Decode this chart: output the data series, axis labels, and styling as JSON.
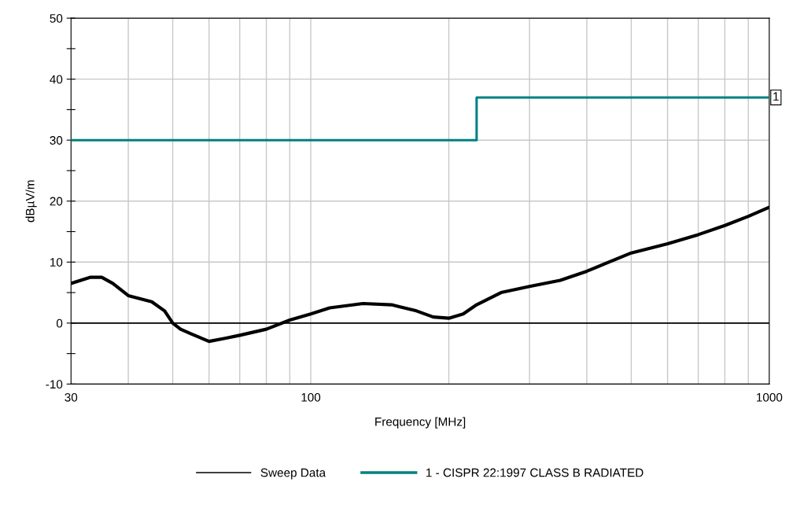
{
  "chart_data": {
    "type": "line",
    "xlabel": "Frequency [MHz]",
    "ylabel": "dBµV/m",
    "log": "x",
    "xlim": [
      30,
      1000
    ],
    "ylim": [
      -10,
      50
    ],
    "xticks": [
      30,
      {
        "value": 40,
        "label": null
      },
      {
        "value": 50,
        "label": null
      },
      {
        "value": 60,
        "label": null
      },
      {
        "value": 70,
        "label": null
      },
      {
        "value": 80,
        "label": null
      },
      {
        "value": 90,
        "label": null
      },
      100,
      {
        "value": 200,
        "label": null
      },
      {
        "value": 300,
        "label": null
      },
      {
        "value": 400,
        "label": null
      },
      {
        "value": 500,
        "label": null
      },
      {
        "value": 600,
        "label": null
      },
      {
        "value": 700,
        "label": null
      },
      {
        "value": 800,
        "label": null
      },
      {
        "value": 900,
        "label": null
      },
      1000
    ],
    "yticks": [
      -10,
      {
        "value": -5,
        "label": null
      },
      0,
      {
        "value": 5,
        "label": null
      },
      10,
      {
        "value": 15,
        "label": null
      },
      20,
      {
        "value": 25,
        "label": null
      },
      30,
      {
        "value": 35,
        "label": null
      },
      40,
      {
        "value": 45,
        "label": null
      },
      50
    ],
    "grid": true,
    "legend": "bottom",
    "series": [
      {
        "name": "Sweep Data",
        "color": "#000000",
        "x": [
          30,
          33,
          35,
          37,
          40,
          45,
          48,
          50,
          52,
          55,
          60,
          65,
          70,
          80,
          90,
          100,
          110,
          130,
          150,
          170,
          185,
          200,
          215,
          230,
          260,
          300,
          350,
          400,
          500,
          600,
          700,
          800,
          900,
          1000
        ],
        "values": [
          6.5,
          7.5,
          7.5,
          6.5,
          4.5,
          3.5,
          2,
          0,
          -1,
          -1.8,
          -3,
          -2.5,
          -2,
          -1,
          0.5,
          1.5,
          2.5,
          3.2,
          3,
          2,
          1,
          0.8,
          1.5,
          3,
          5,
          6,
          7,
          8.5,
          11.5,
          13,
          14.5,
          16,
          17.5,
          19
        ]
      },
      {
        "name": "1 - CISPR 22:1997 CLASS B RADIATED",
        "type": "step",
        "color": "#008080",
        "x": [
          30,
          230,
          1000
        ],
        "values": [
          30,
          37,
          37
        ]
      }
    ],
    "ref_lines": [
      {
        "axis": "y",
        "value": 0,
        "color": "#000000"
      }
    ],
    "annotations": [
      {
        "text": "1",
        "x": 1000,
        "y": 37
      }
    ]
  }
}
